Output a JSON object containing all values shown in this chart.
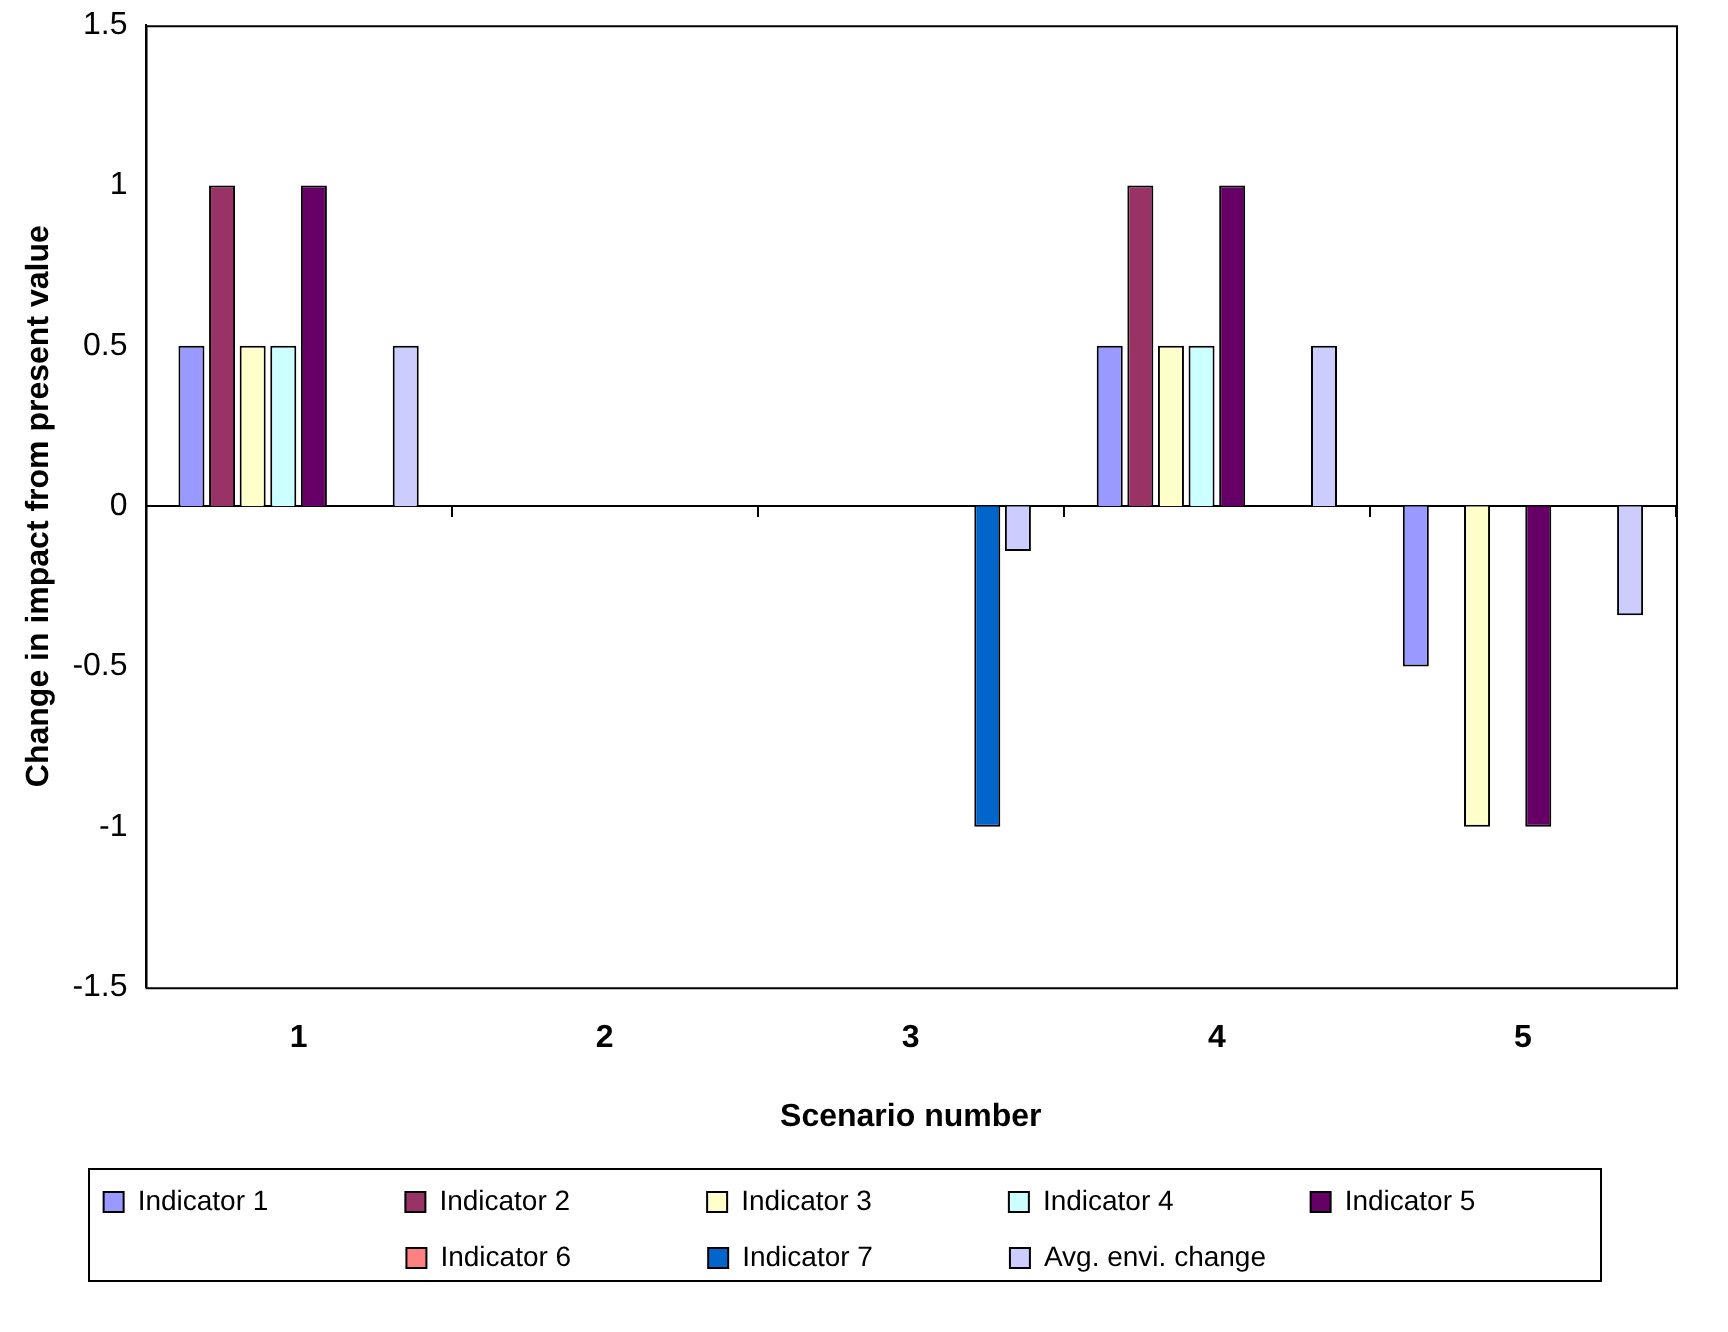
{
  "chart_data": {
    "type": "bar",
    "xlabel": "Scenario number",
    "ylabel": "Change in impact from present value",
    "categories": [
      "1",
      "2",
      "3",
      "4",
      "5"
    ],
    "series": [
      {
        "name": "Indicator 1",
        "color": "#9999ff",
        "values": [
          0.5,
          0,
          0,
          0.5,
          -0.5
        ]
      },
      {
        "name": "Indicator 2",
        "color": "#993366",
        "values": [
          1,
          0,
          0,
          1,
          0
        ]
      },
      {
        "name": "Indicator 3",
        "color": "#ffffcc",
        "values": [
          0.5,
          0,
          0,
          0.5,
          -1
        ]
      },
      {
        "name": "Indicator 4",
        "color": "#ccffff",
        "values": [
          0.5,
          0,
          0,
          0.5,
          0
        ]
      },
      {
        "name": "Indicator 5",
        "color": "#660066",
        "values": [
          1,
          0,
          0,
          1,
          -1
        ]
      },
      {
        "name": "Indicator 6",
        "color": "#ff8080",
        "values": [
          0,
          0,
          0,
          0,
          0
        ]
      },
      {
        "name": "Indicator 7",
        "color": "#0066cc",
        "values": [
          0,
          0,
          -1,
          0,
          0
        ]
      },
      {
        "name": "Avg. envi. change",
        "color": "#ccccff",
        "values": [
          0.5,
          0,
          -0.14,
          0.5,
          -0.34
        ]
      }
    ],
    "ylim": [
      -1.5,
      1.5
    ],
    "yticks": [
      -1.5,
      -1,
      -0.5,
      0,
      0.5,
      1,
      1.5
    ],
    "legend": "bottom"
  }
}
